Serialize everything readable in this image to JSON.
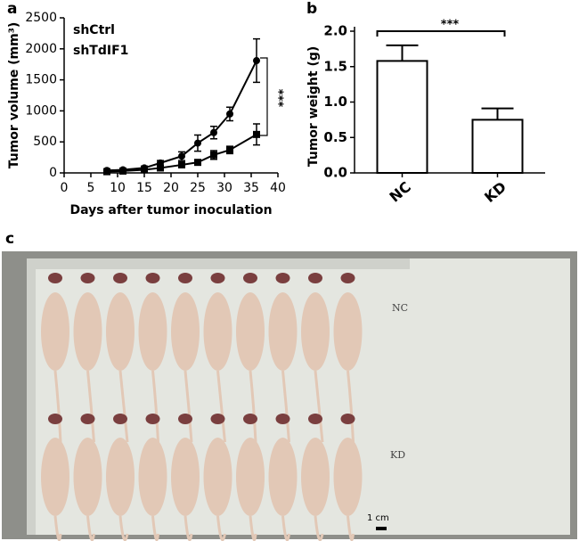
{
  "panels": [
    "a",
    "b",
    "c"
  ],
  "chart_data": [
    {
      "type": "line",
      "x_label": "Days after tumor inoculation",
      "y_label": "Tumor volume (mm³)",
      "x": [
        8,
        11,
        15,
        18,
        22,
        25,
        28,
        31,
        36
      ],
      "series": [
        {
          "name": "shCtrl",
          "color": "#000000",
          "marker": "circle",
          "values": [
            40,
            50,
            80,
            160,
            270,
            480,
            650,
            950,
            1810
          ],
          "errors": [
            20,
            20,
            30,
            40,
            70,
            130,
            100,
            110,
            350
          ]
        },
        {
          "name": "shTdIF1",
          "color": "#000000",
          "marker": "square",
          "values": [
            20,
            30,
            50,
            80,
            130,
            170,
            290,
            370,
            620
          ],
          "errors": [
            15,
            15,
            20,
            30,
            40,
            40,
            70,
            60,
            170
          ]
        }
      ],
      "xlim": [
        0,
        40
      ],
      "xticks": [
        0,
        5,
        10,
        15,
        20,
        25,
        30,
        35,
        40
      ],
      "ylim": [
        0,
        2500
      ],
      "yticks": [
        0,
        500,
        1000,
        1500,
        2000,
        2500
      ],
      "annotation": "***"
    },
    {
      "type": "bar",
      "y_label": "Tumor weight (g)",
      "categories": [
        "NC",
        "KD"
      ],
      "values": [
        1.58,
        0.75
      ],
      "errors": [
        0.22,
        0.16
      ],
      "color": "#ffffff",
      "ylim": [
        0,
        2.0
      ],
      "yticks": [
        {
          "value": 0,
          "label": "0.0"
        },
        0.5,
        {
          "value": 1,
          "label": "1.0"
        },
        1.5,
        {
          "value": 2,
          "label": "2.0"
        }
      ],
      "annotation": "***"
    }
  ],
  "photo": {
    "labels": [
      "NC",
      "KD"
    ],
    "scale_bar": "1 cm"
  }
}
